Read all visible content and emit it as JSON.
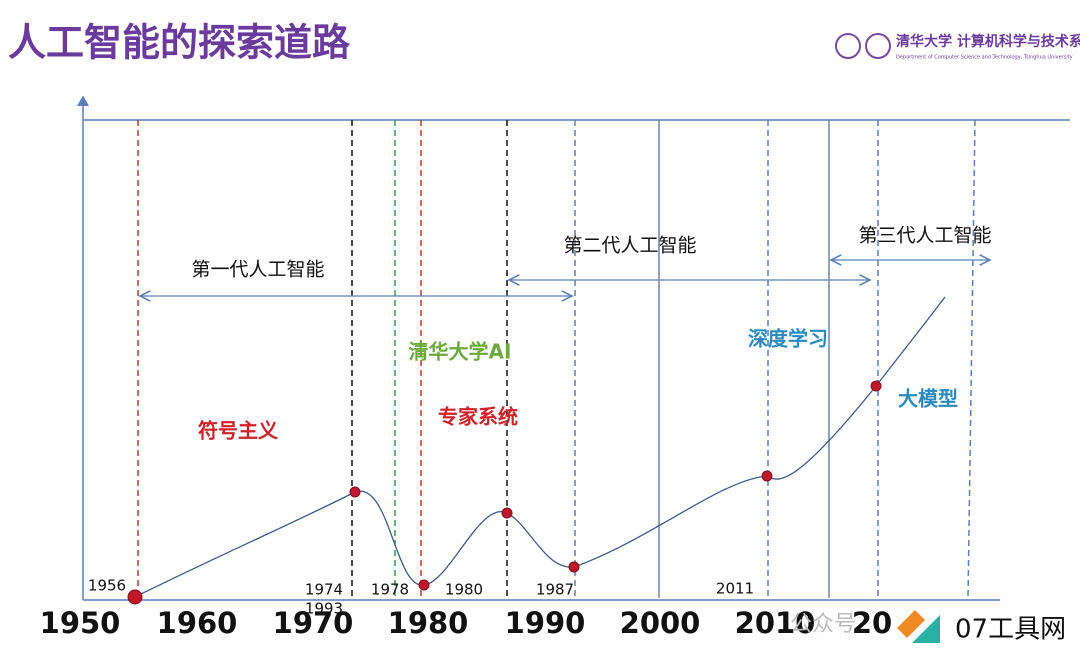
{
  "header": {
    "title": "人工智能的探索道路",
    "logo": "清华大学 计算机科学与技术系",
    "logo_sub": "Department of Computer Science and Technology, Tsinghua University"
  },
  "axis": {
    "labels": [
      "1950",
      "1960",
      "1970",
      "1980",
      "1990",
      "2000",
      "2010",
      "20"
    ]
  },
  "years": [
    "1956",
    "1974",
    "1993",
    "1978",
    "1980",
    "1987",
    "2011"
  ],
  "eras": [
    "第一代人工智能",
    "第二代人工智能",
    "第三代人工智能"
  ],
  "phases": [
    "清华大学AI",
    "符号主义",
    "专家系统",
    "深度学习",
    "大模型"
  ],
  "watermark": {
    "faded": "公众号",
    "brand": "07工具网"
  }
}
